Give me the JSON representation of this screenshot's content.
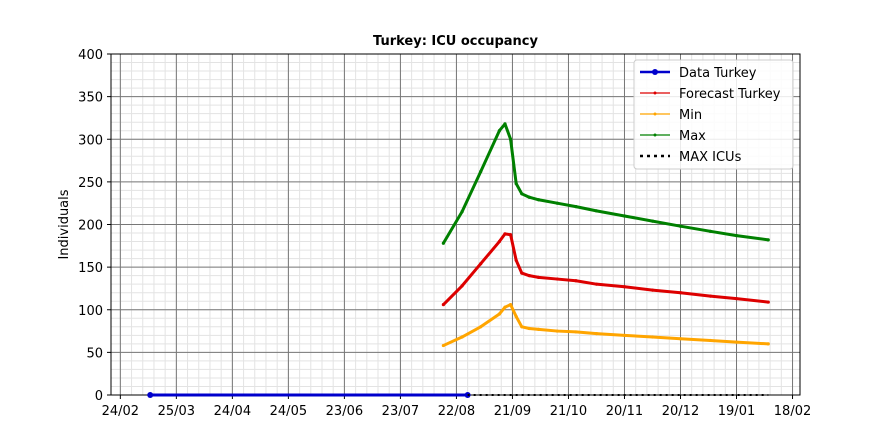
{
  "chart_data": {
    "type": "line",
    "title": "Turkey: ICU occupancy",
    "xlabel": "",
    "ylabel": "Individuals",
    "ylim": [
      0,
      400
    ],
    "xlim": [
      "2020-02-19",
      "2021-02-22"
    ],
    "grid": "major and minor",
    "legend_position": "top-right",
    "x_ticks": [
      "24/02",
      "25/03",
      "24/04",
      "24/05",
      "23/06",
      "23/07",
      "22/08",
      "21/09",
      "21/10",
      "20/11",
      "20/12",
      "19/01",
      "18/02"
    ],
    "x_tick_dates": [
      "2020-02-24",
      "2020-03-25",
      "2020-04-24",
      "2020-05-24",
      "2020-06-23",
      "2020-07-23",
      "2020-08-22",
      "2020-09-21",
      "2020-10-21",
      "2020-11-20",
      "2020-12-20",
      "2021-01-19",
      "2021-02-18"
    ],
    "y_ticks": [
      0,
      50,
      100,
      150,
      200,
      250,
      300,
      350,
      400
    ],
    "series": [
      {
        "name": "Data Turkey",
        "color": "#0000cc",
        "style": "solid-dots",
        "x": [
          "2020-03-11",
          "2020-08-28"
        ],
        "y": [
          0,
          0
        ]
      },
      {
        "name": "Forecast Turkey",
        "color": "#dd0000",
        "style": "solid-small-dots",
        "x": [
          "2020-08-15",
          "2020-08-25",
          "2020-09-04",
          "2020-09-14",
          "2020-09-17",
          "2020-09-20",
          "2020-09-23",
          "2020-09-26",
          "2020-09-30",
          "2020-10-05",
          "2020-10-15",
          "2020-10-25",
          "2020-11-05",
          "2020-11-20",
          "2020-12-05",
          "2020-12-20",
          "2021-01-05",
          "2021-01-19",
          "2021-02-05"
        ],
        "y": [
          106,
          128,
          154,
          180,
          189,
          188,
          158,
          143,
          140,
          138,
          136,
          134,
          130,
          127,
          123,
          120,
          116,
          113,
          109
        ]
      },
      {
        "name": "Min",
        "color": "#ffa500",
        "style": "solid-small-dots",
        "x": [
          "2020-08-15",
          "2020-08-25",
          "2020-09-04",
          "2020-09-14",
          "2020-09-17",
          "2020-09-20",
          "2020-09-23",
          "2020-09-26",
          "2020-09-30",
          "2020-10-05",
          "2020-10-15",
          "2020-10-25",
          "2020-11-05",
          "2020-11-20",
          "2020-12-05",
          "2020-12-20",
          "2021-01-05",
          "2021-01-19",
          "2021-02-05"
        ],
        "y": [
          58,
          68,
          80,
          95,
          103,
          106,
          92,
          80,
          78,
          77,
          75,
          74,
          72,
          70,
          68,
          66,
          64,
          62,
          60
        ]
      },
      {
        "name": "Max",
        "color": "#008000",
        "style": "solid-small-dots",
        "x": [
          "2020-08-15",
          "2020-08-25",
          "2020-09-04",
          "2020-09-14",
          "2020-09-17",
          "2020-09-20",
          "2020-09-23",
          "2020-09-26",
          "2020-09-30",
          "2020-10-05",
          "2020-10-15",
          "2020-10-25",
          "2020-11-05",
          "2020-11-20",
          "2020-12-05",
          "2020-12-20",
          "2021-01-05",
          "2021-01-19",
          "2021-02-05"
        ],
        "y": [
          178,
          215,
          262,
          310,
          318,
          300,
          248,
          236,
          232,
          229,
          225,
          221,
          216,
          210,
          204,
          198,
          192,
          187,
          182
        ]
      },
      {
        "name": "MAX ICUs",
        "color": "#000000",
        "style": "dotted",
        "x": [
          "2020-08-28",
          "2021-02-05"
        ],
        "y": [
          0,
          0
        ]
      }
    ]
  }
}
